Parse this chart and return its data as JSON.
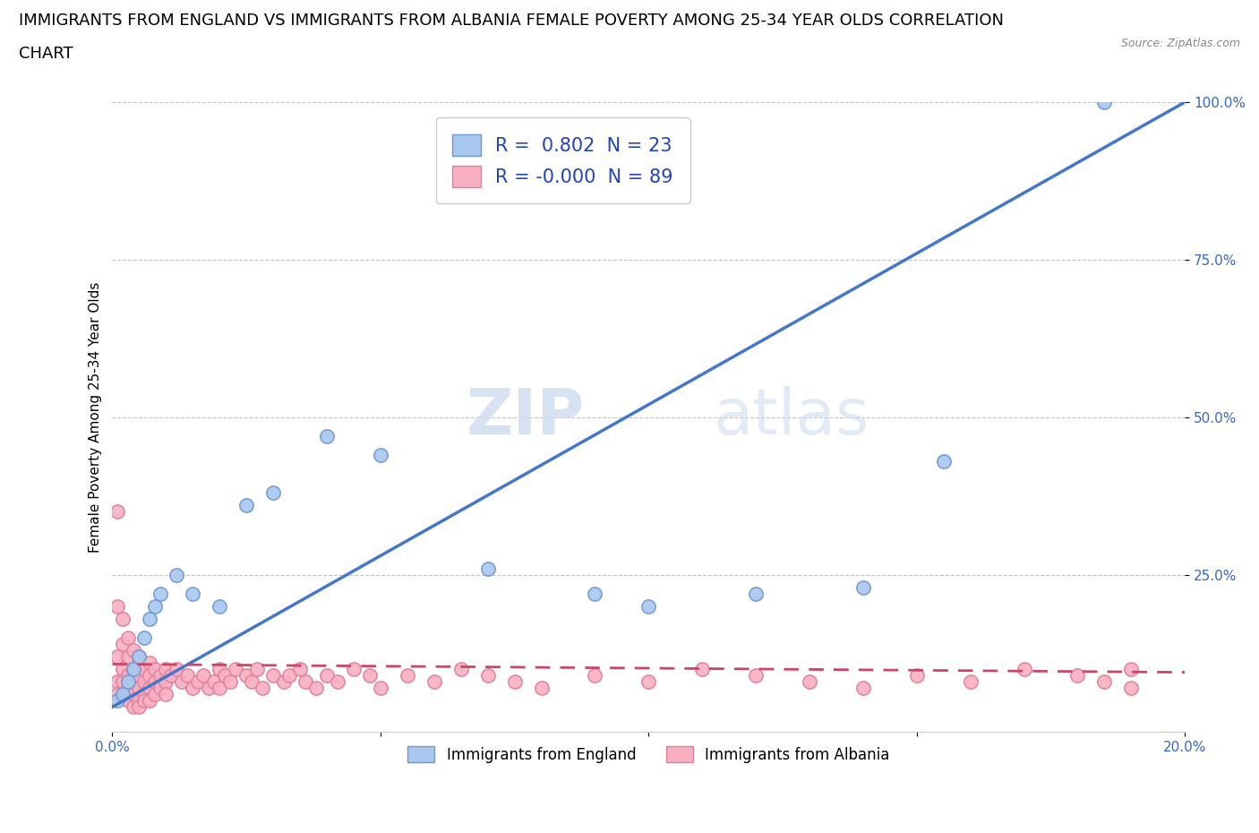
{
  "title_line1": "IMMIGRANTS FROM ENGLAND VS IMMIGRANTS FROM ALBANIA FEMALE POVERTY AMONG 25-34 YEAR OLDS CORRELATION",
  "title_line2": "CHART",
  "source": "Source: ZipAtlas.com",
  "ylabel": "Female Poverty Among 25-34 Year Olds",
  "xlim": [
    0.0,
    0.2
  ],
  "ylim": [
    0.0,
    1.0
  ],
  "xticks": [
    0.0,
    0.05,
    0.1,
    0.15,
    0.2
  ],
  "xtick_labels": [
    "0.0%",
    "",
    "",
    "",
    "20.0%"
  ],
  "yticks": [
    0.25,
    0.5,
    0.75,
    1.0
  ],
  "ytick_labels": [
    "25.0%",
    "50.0%",
    "75.0%",
    "100.0%"
  ],
  "england_color": "#a8c8f0",
  "albania_color": "#f8b0c0",
  "england_edge": "#7098d0",
  "albania_edge": "#e080a0",
  "trend_england_color": "#4477cc",
  "trend_albania_color": "#cc4466",
  "england_R": 0.802,
  "england_N": 23,
  "albania_R": -0.0,
  "albania_N": 89,
  "legend_R_color": "#2244bb",
  "watermark_zip": "ZIP",
  "watermark_atlas": "atlas",
  "england_x": [
    0.001,
    0.002,
    0.003,
    0.004,
    0.005,
    0.006,
    0.007,
    0.008,
    0.009,
    0.012,
    0.015,
    0.02,
    0.025,
    0.03,
    0.04,
    0.05,
    0.07,
    0.09,
    0.1,
    0.12,
    0.14,
    0.155,
    0.185
  ],
  "england_y": [
    0.05,
    0.06,
    0.08,
    0.1,
    0.12,
    0.15,
    0.18,
    0.2,
    0.22,
    0.25,
    0.22,
    0.2,
    0.36,
    0.38,
    0.47,
    0.44,
    0.26,
    0.22,
    0.2,
    0.22,
    0.23,
    0.43,
    1.0
  ],
  "albania_x": [
    0.001,
    0.001,
    0.001,
    0.001,
    0.001,
    0.002,
    0.002,
    0.002,
    0.002,
    0.002,
    0.003,
    0.003,
    0.003,
    0.003,
    0.003,
    0.004,
    0.004,
    0.004,
    0.004,
    0.004,
    0.005,
    0.005,
    0.005,
    0.005,
    0.005,
    0.006,
    0.006,
    0.006,
    0.006,
    0.007,
    0.007,
    0.007,
    0.007,
    0.008,
    0.008,
    0.008,
    0.009,
    0.009,
    0.01,
    0.01,
    0.01,
    0.011,
    0.012,
    0.013,
    0.014,
    0.015,
    0.016,
    0.017,
    0.018,
    0.019,
    0.02,
    0.02,
    0.021,
    0.022,
    0.023,
    0.025,
    0.026,
    0.027,
    0.028,
    0.03,
    0.032,
    0.033,
    0.035,
    0.036,
    0.038,
    0.04,
    0.042,
    0.045,
    0.048,
    0.05,
    0.055,
    0.06,
    0.065,
    0.07,
    0.075,
    0.08,
    0.09,
    0.1,
    0.11,
    0.12,
    0.13,
    0.14,
    0.15,
    0.16,
    0.17,
    0.18,
    0.185,
    0.19,
    0.19
  ],
  "albania_y": [
    0.35,
    0.2,
    0.12,
    0.08,
    0.06,
    0.18,
    0.14,
    0.1,
    0.08,
    0.06,
    0.15,
    0.12,
    0.09,
    0.07,
    0.05,
    0.13,
    0.1,
    0.08,
    0.06,
    0.04,
    0.12,
    0.09,
    0.07,
    0.05,
    0.04,
    0.1,
    0.08,
    0.06,
    0.05,
    0.11,
    0.09,
    0.07,
    0.05,
    0.1,
    0.08,
    0.06,
    0.09,
    0.07,
    0.1,
    0.08,
    0.06,
    0.09,
    0.1,
    0.08,
    0.09,
    0.07,
    0.08,
    0.09,
    0.07,
    0.08,
    0.1,
    0.07,
    0.09,
    0.08,
    0.1,
    0.09,
    0.08,
    0.1,
    0.07,
    0.09,
    0.08,
    0.09,
    0.1,
    0.08,
    0.07,
    0.09,
    0.08,
    0.1,
    0.09,
    0.07,
    0.09,
    0.08,
    0.1,
    0.09,
    0.08,
    0.07,
    0.09,
    0.08,
    0.1,
    0.09,
    0.08,
    0.07,
    0.09,
    0.08,
    0.1,
    0.09,
    0.08,
    0.1,
    0.07
  ],
  "background_color": "#ffffff",
  "grid_color": "#aaaaaa",
  "title_fontsize": 13,
  "axis_label_fontsize": 11,
  "tick_fontsize": 11,
  "marker_size": 11
}
